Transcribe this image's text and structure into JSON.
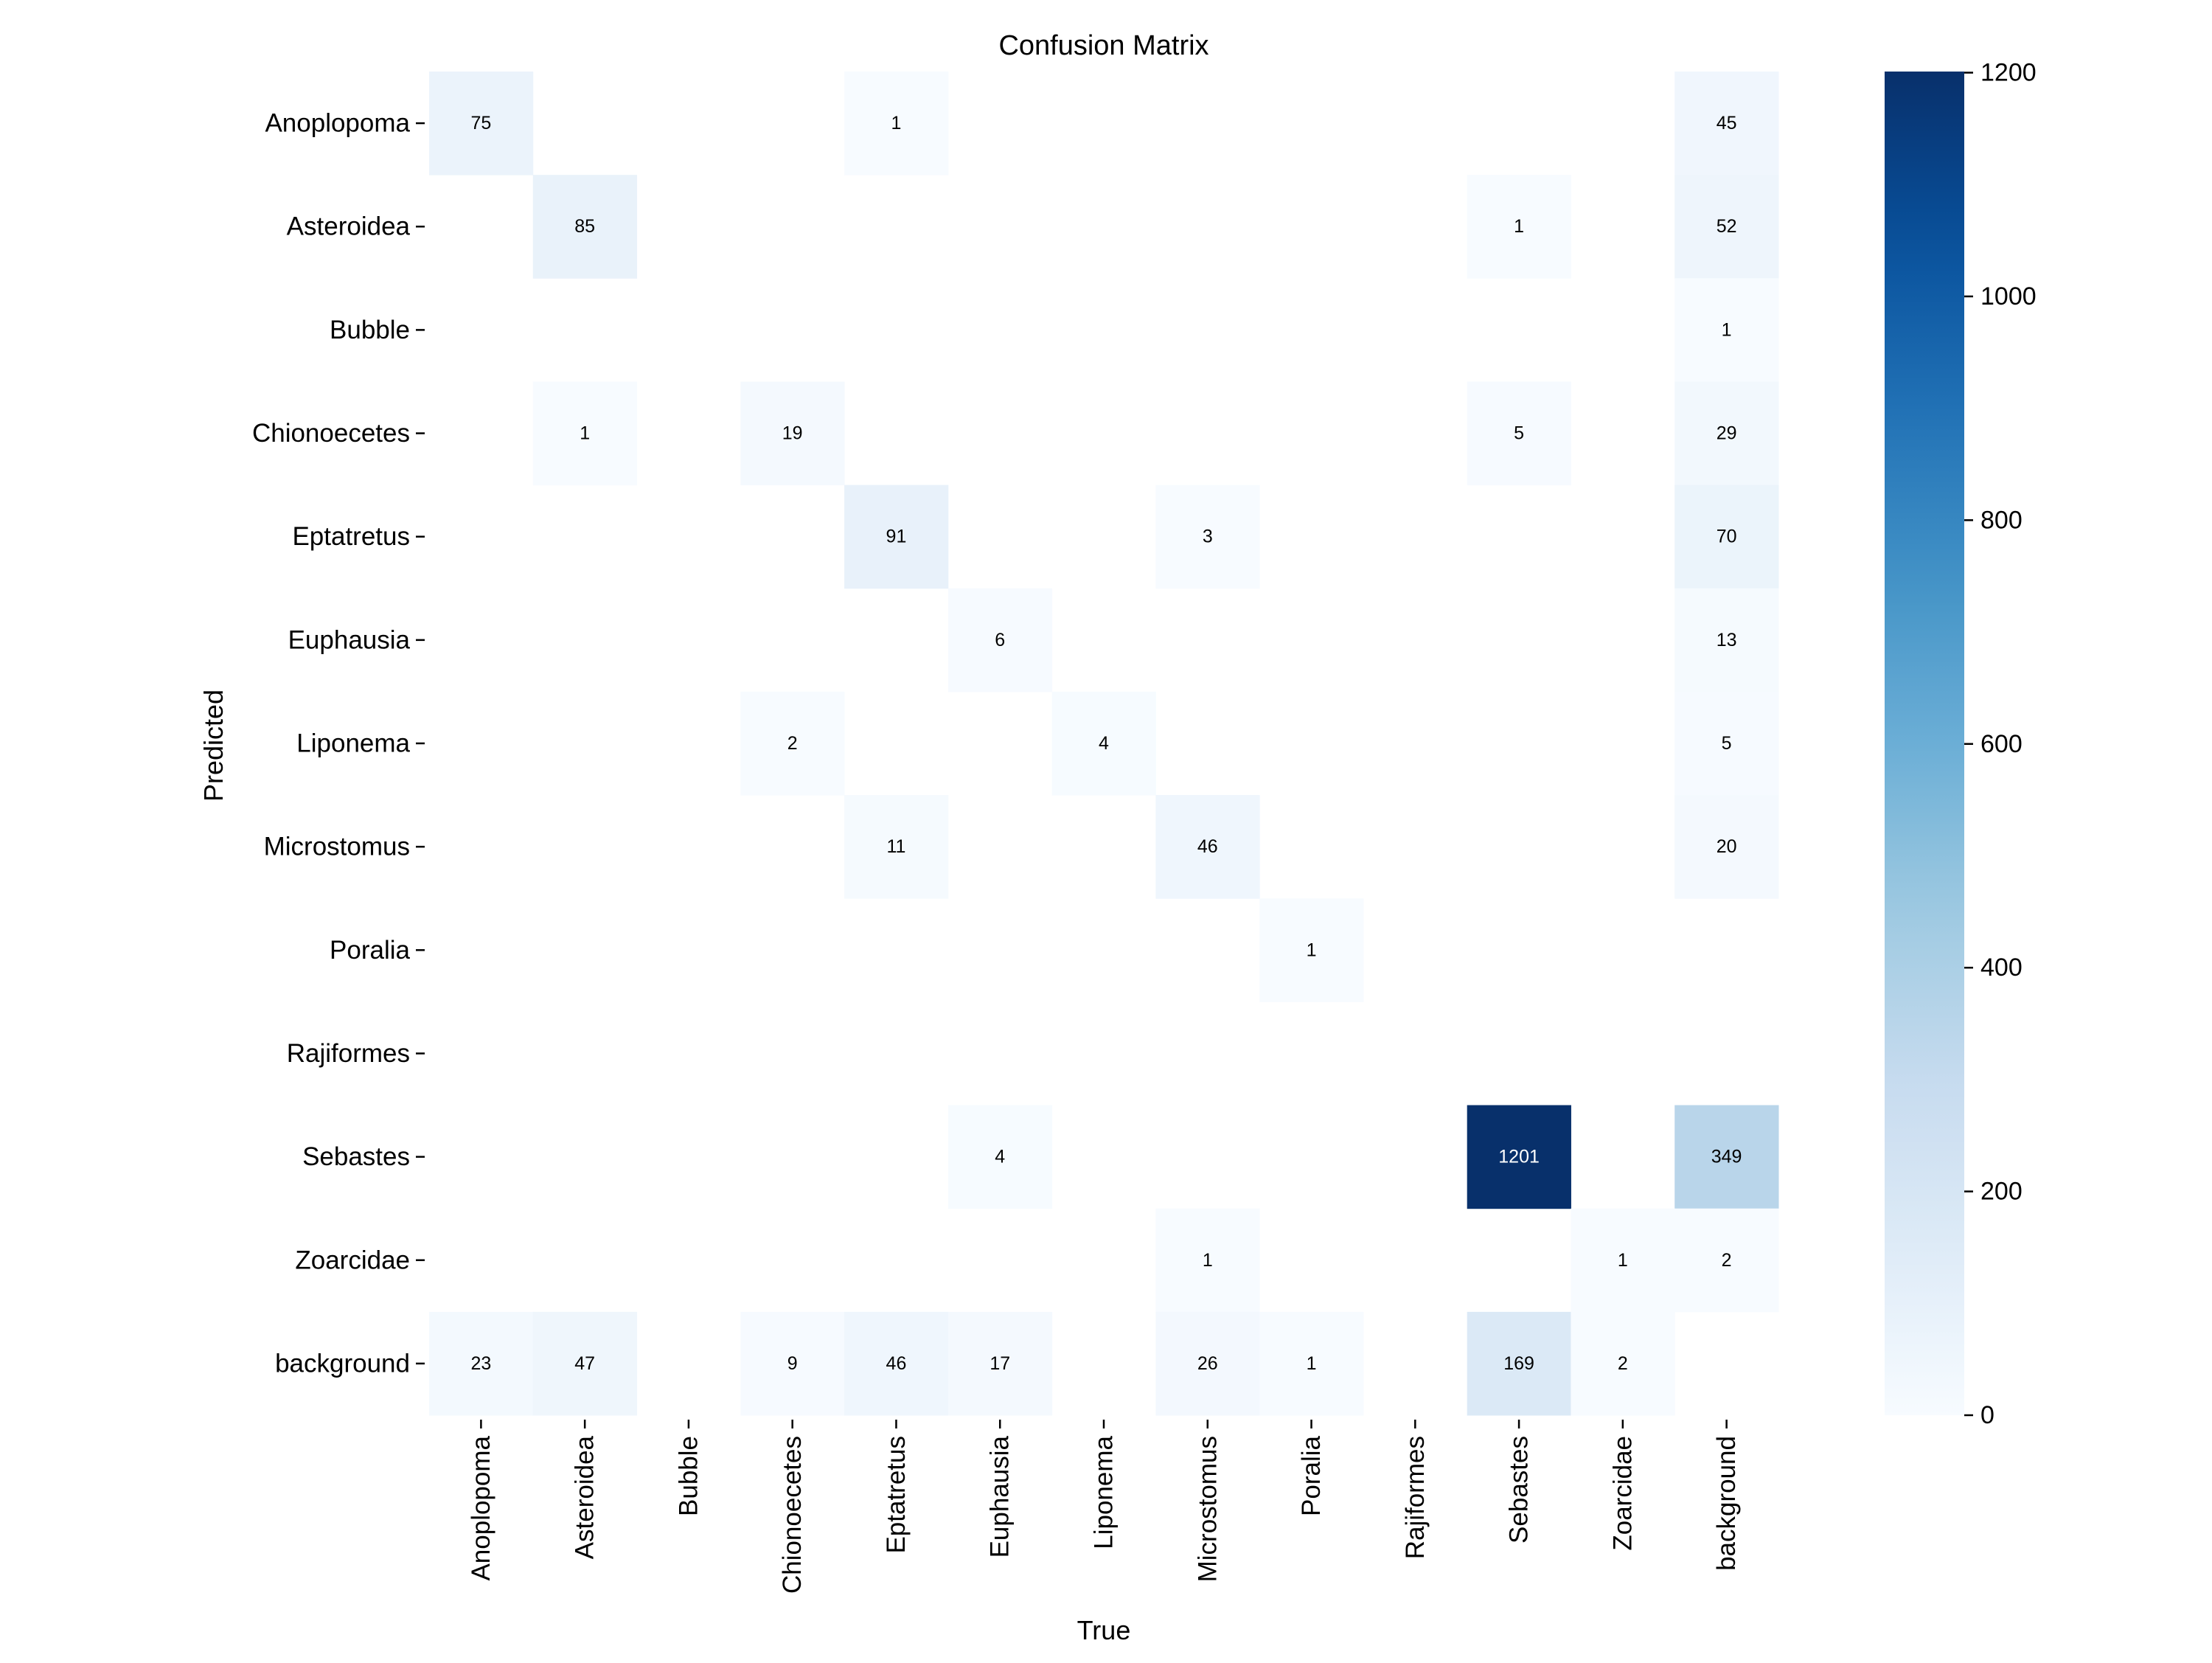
{
  "chart_data": {
    "type": "heatmap",
    "title": "Confusion Matrix",
    "xlabel": "True",
    "ylabel": "Predicted",
    "x_categories": [
      "Anoplopoma",
      "Asteroidea",
      "Bubble",
      "Chionoecetes",
      "Eptatretus",
      "Euphausia",
      "Liponema",
      "Microstomus",
      "Poralia",
      "Rajiformes",
      "Sebastes",
      "Zoarcidae",
      "background"
    ],
    "y_categories": [
      "Anoplopoma",
      "Asteroidea",
      "Bubble",
      "Chionoecetes",
      "Eptatretus",
      "Euphausia",
      "Liponema",
      "Microstomus",
      "Poralia",
      "Rajiformes",
      "Sebastes",
      "Zoarcidae",
      "background"
    ],
    "matrix": [
      [
        75,
        0,
        0,
        0,
        1,
        0,
        0,
        0,
        0,
        0,
        0,
        0,
        45
      ],
      [
        0,
        85,
        0,
        0,
        0,
        0,
        0,
        0,
        0,
        0,
        1,
        0,
        52
      ],
      [
        0,
        0,
        0,
        0,
        0,
        0,
        0,
        0,
        0,
        0,
        0,
        0,
        1
      ],
      [
        0,
        1,
        0,
        19,
        0,
        0,
        0,
        0,
        0,
        0,
        5,
        0,
        29
      ],
      [
        0,
        0,
        0,
        0,
        91,
        0,
        0,
        3,
        0,
        0,
        0,
        0,
        70
      ],
      [
        0,
        0,
        0,
        0,
        0,
        6,
        0,
        0,
        0,
        0,
        0,
        0,
        13
      ],
      [
        0,
        0,
        0,
        2,
        0,
        0,
        4,
        0,
        0,
        0,
        0,
        0,
        5
      ],
      [
        0,
        0,
        0,
        0,
        11,
        0,
        0,
        46,
        0,
        0,
        0,
        0,
        20
      ],
      [
        0,
        0,
        0,
        0,
        0,
        0,
        0,
        0,
        1,
        0,
        0,
        0,
        0
      ],
      [
        0,
        0,
        0,
        0,
        0,
        0,
        0,
        0,
        0,
        0,
        0,
        0,
        0
      ],
      [
        0,
        0,
        0,
        0,
        0,
        4,
        0,
        0,
        0,
        0,
        1201,
        0,
        349
      ],
      [
        0,
        0,
        0,
        0,
        0,
        0,
        0,
        1,
        0,
        0,
        0,
        1,
        2
      ],
      [
        23,
        47,
        0,
        9,
        46,
        17,
        0,
        26,
        1,
        0,
        169,
        2,
        0
      ]
    ],
    "zero_cells_hidden": true,
    "colormap": "Blues",
    "colorbar": {
      "min": 0,
      "max": 1201,
      "ticks": [
        0,
        200,
        400,
        600,
        800,
        1000,
        1200
      ]
    },
    "grid": false,
    "legend": "colorbar-right"
  }
}
